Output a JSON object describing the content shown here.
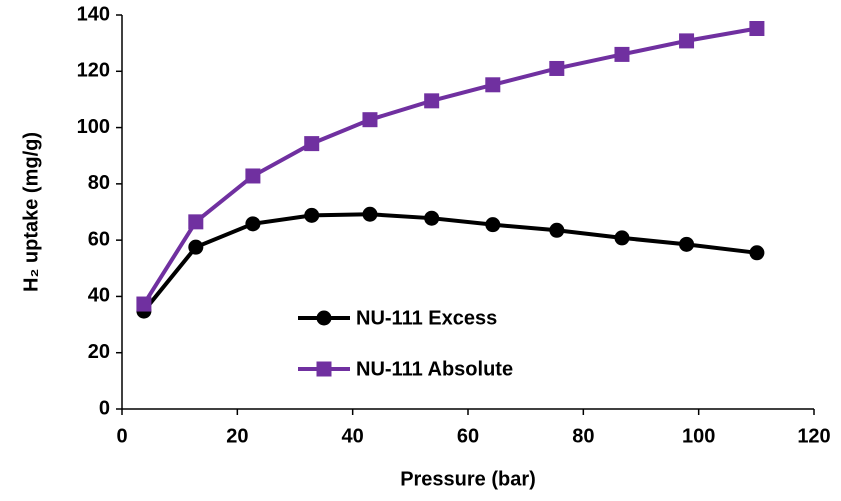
{
  "chart_data": {
    "type": "line",
    "x_label": "Pressure (bar)",
    "y_label": "H₂ uptake  (mg/g)",
    "x": [
      3.8,
      12.8,
      22.7,
      32.9,
      43.0,
      53.7,
      64.3,
      75.4,
      86.7,
      97.9,
      110.1
    ],
    "series": [
      {
        "name": "NU-111 Excess",
        "color": "#000000",
        "marker": "circle",
        "values": [
          34.8,
          57.5,
          65.8,
          68.8,
          69.2,
          67.8,
          65.5,
          63.5,
          60.8,
          58.5,
          55.5
        ]
      },
      {
        "name": "NU-111 Absolute",
        "color": "#7030a0",
        "marker": "square",
        "values": [
          37.3,
          66.5,
          82.8,
          94.3,
          102.8,
          109.5,
          115.2,
          121.0,
          126.0,
          130.8,
          135.2
        ]
      }
    ],
    "xlim": [
      0,
      120
    ],
    "xticks": [
      0,
      20,
      40,
      60,
      80,
      100,
      120
    ],
    "ylim": [
      0,
      140
    ],
    "yticks": [
      0,
      20,
      40,
      60,
      80,
      100,
      120,
      140
    ],
    "grid": false
  }
}
